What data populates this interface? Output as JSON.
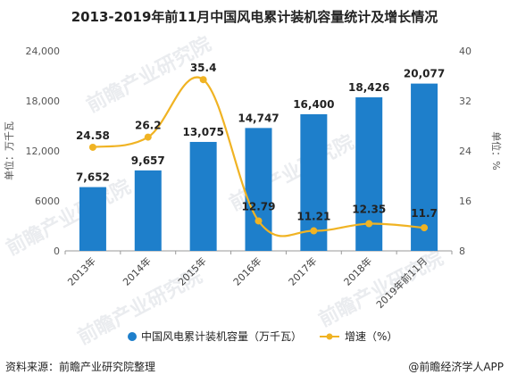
{
  "title": "2013-2019年前11月中国风电累计装机容量统计及增长情况",
  "footer": {
    "source": "资料来源：前瞻产业研究院整理",
    "brand": "@前瞻经济学人APP"
  },
  "watermark": "前瞻产业研究院",
  "colors": {
    "bar": "#1e7fcb",
    "line": "#f0b323"
  },
  "chart_data": {
    "type": "bar",
    "categories": [
      "2013年",
      "2014年",
      "2015年",
      "2016年",
      "2017年",
      "2018年",
      "2019年前11月"
    ],
    "series": [
      {
        "name": "中国风电累计装机容量（万千瓦）",
        "type": "bar",
        "axis": "left",
        "values": [
          7652,
          9657,
          13075,
          14747,
          16400,
          18426,
          20077
        ],
        "labels": [
          "7,652",
          "9,657",
          "13,075",
          "14,747",
          "16,400",
          "18,426",
          "20,077"
        ]
      },
      {
        "name": "增速（%）",
        "type": "line",
        "axis": "right",
        "values": [
          24.58,
          26.2,
          35.4,
          12.79,
          11.21,
          12.35,
          11.7
        ],
        "labels": [
          "24.58",
          "26.2",
          "35.4",
          "12.79",
          "11.21",
          "12.35",
          "11.7"
        ]
      }
    ],
    "ylabel": "单位：万千瓦",
    "y2label": "单位：%",
    "ylim": [
      0,
      24000
    ],
    "yticks": [
      "0",
      "6000",
      "12,000",
      "18,000",
      "24,000"
    ],
    "y2lim": [
      8,
      40
    ],
    "y2ticks": [
      "8",
      "16",
      "24",
      "32",
      "40"
    ],
    "legend_position": "bottom",
    "grid": false
  }
}
